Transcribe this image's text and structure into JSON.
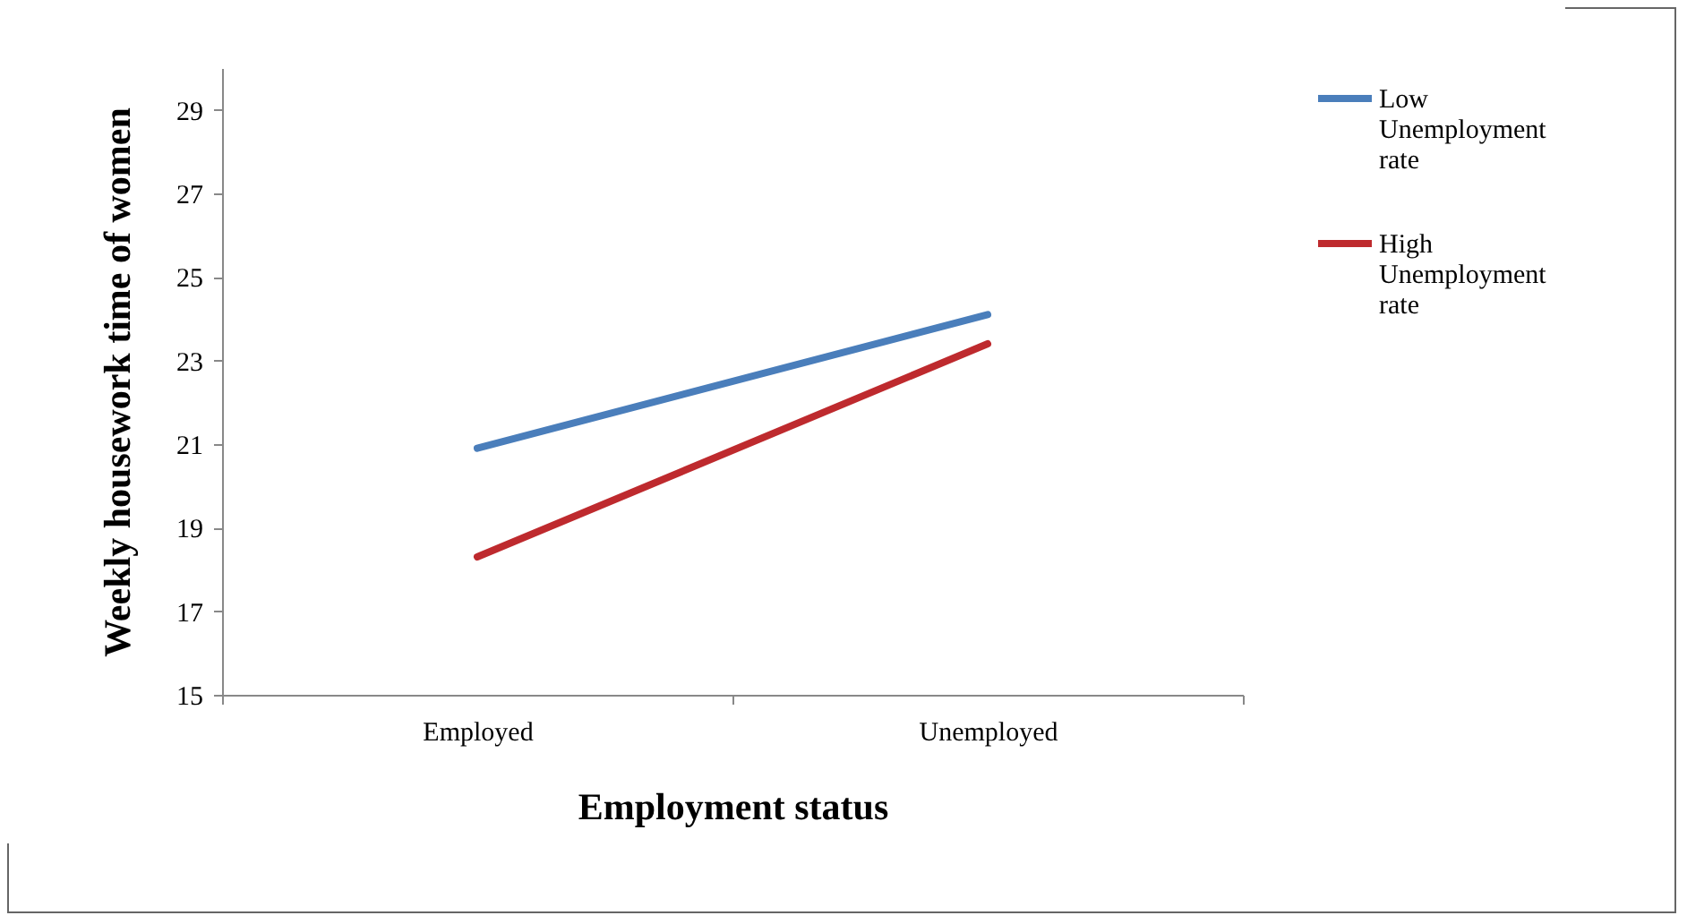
{
  "chart_data": {
    "type": "line",
    "xlabel": "Employment status",
    "ylabel": "Weekly housework time of women",
    "categories": [
      "Employed",
      "Unemployed"
    ],
    "series": [
      {
        "name": "Low Unemployment rate",
        "color": "#4a7ebb",
        "values": [
          20.9,
          24.1
        ]
      },
      {
        "name": "High Unemployment rate",
        "color": "#be2a2e",
        "values": [
          18.3,
          23.4
        ]
      }
    ],
    "ylim": [
      15,
      30
    ],
    "yticks": [
      15,
      17,
      19,
      21,
      23,
      25,
      27,
      29
    ],
    "grid": false,
    "legend": "right",
    "marker": "none",
    "line_style": "solid"
  }
}
